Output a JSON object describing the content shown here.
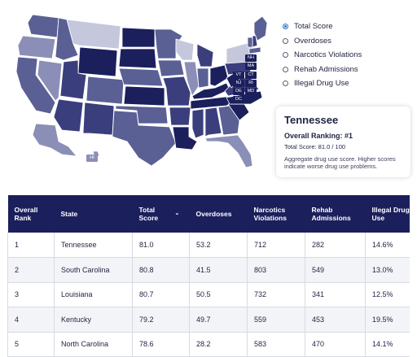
{
  "map": {
    "badges": [
      "NH",
      "MA",
      "VT",
      "CT",
      "NJ",
      "RI",
      "DE",
      "MD",
      "DC",
      "HI"
    ],
    "colors": {
      "darkest": "#1b1f5c",
      "dark": "#3a3e7c",
      "mid": "#5a5f94",
      "light": "#8b8fb7",
      "lightest": "#c5c7dd"
    }
  },
  "metrics": {
    "options": [
      "Total Score",
      "Overdoses",
      "Narcotics Violations",
      "Rehab Admissions",
      "Illegal Drug Use"
    ],
    "selected": "Total Score"
  },
  "info": {
    "state": "Tennessee",
    "ranking": "Overall Ranking: #1",
    "score": "Total Score: 81.0 / 100",
    "note": "Aggregate drug use score. Higher scores indicate worse drug use problems."
  },
  "table": {
    "headers": {
      "rank": "Overall Rank",
      "state": "State",
      "total": "Total Score",
      "overdoses": "Overdoses",
      "narcotics": "Narcotics Violations",
      "rehab": "Rehab Admissions",
      "illegal": "Illegal Drug Use"
    },
    "rows": [
      {
        "rank": "1",
        "state": "Tennessee",
        "total": "81.0",
        "overdoses": "53.2",
        "narcotics": "712",
        "rehab": "282",
        "illegal": "14.6%"
      },
      {
        "rank": "2",
        "state": "South Carolina",
        "total": "80.8",
        "overdoses": "41.5",
        "narcotics": "803",
        "rehab": "549",
        "illegal": "13.0%"
      },
      {
        "rank": "3",
        "state": "Louisiana",
        "total": "80.7",
        "overdoses": "50.5",
        "narcotics": "732",
        "rehab": "341",
        "illegal": "12.5%"
      },
      {
        "rank": "4",
        "state": "Kentucky",
        "total": "79.2",
        "overdoses": "49.7",
        "narcotics": "559",
        "rehab": "453",
        "illegal": "19.5%"
      },
      {
        "rank": "5",
        "state": "North Carolina",
        "total": "78.6",
        "overdoses": "28.2",
        "narcotics": "583",
        "rehab": "470",
        "illegal": "14.1%"
      }
    ]
  }
}
